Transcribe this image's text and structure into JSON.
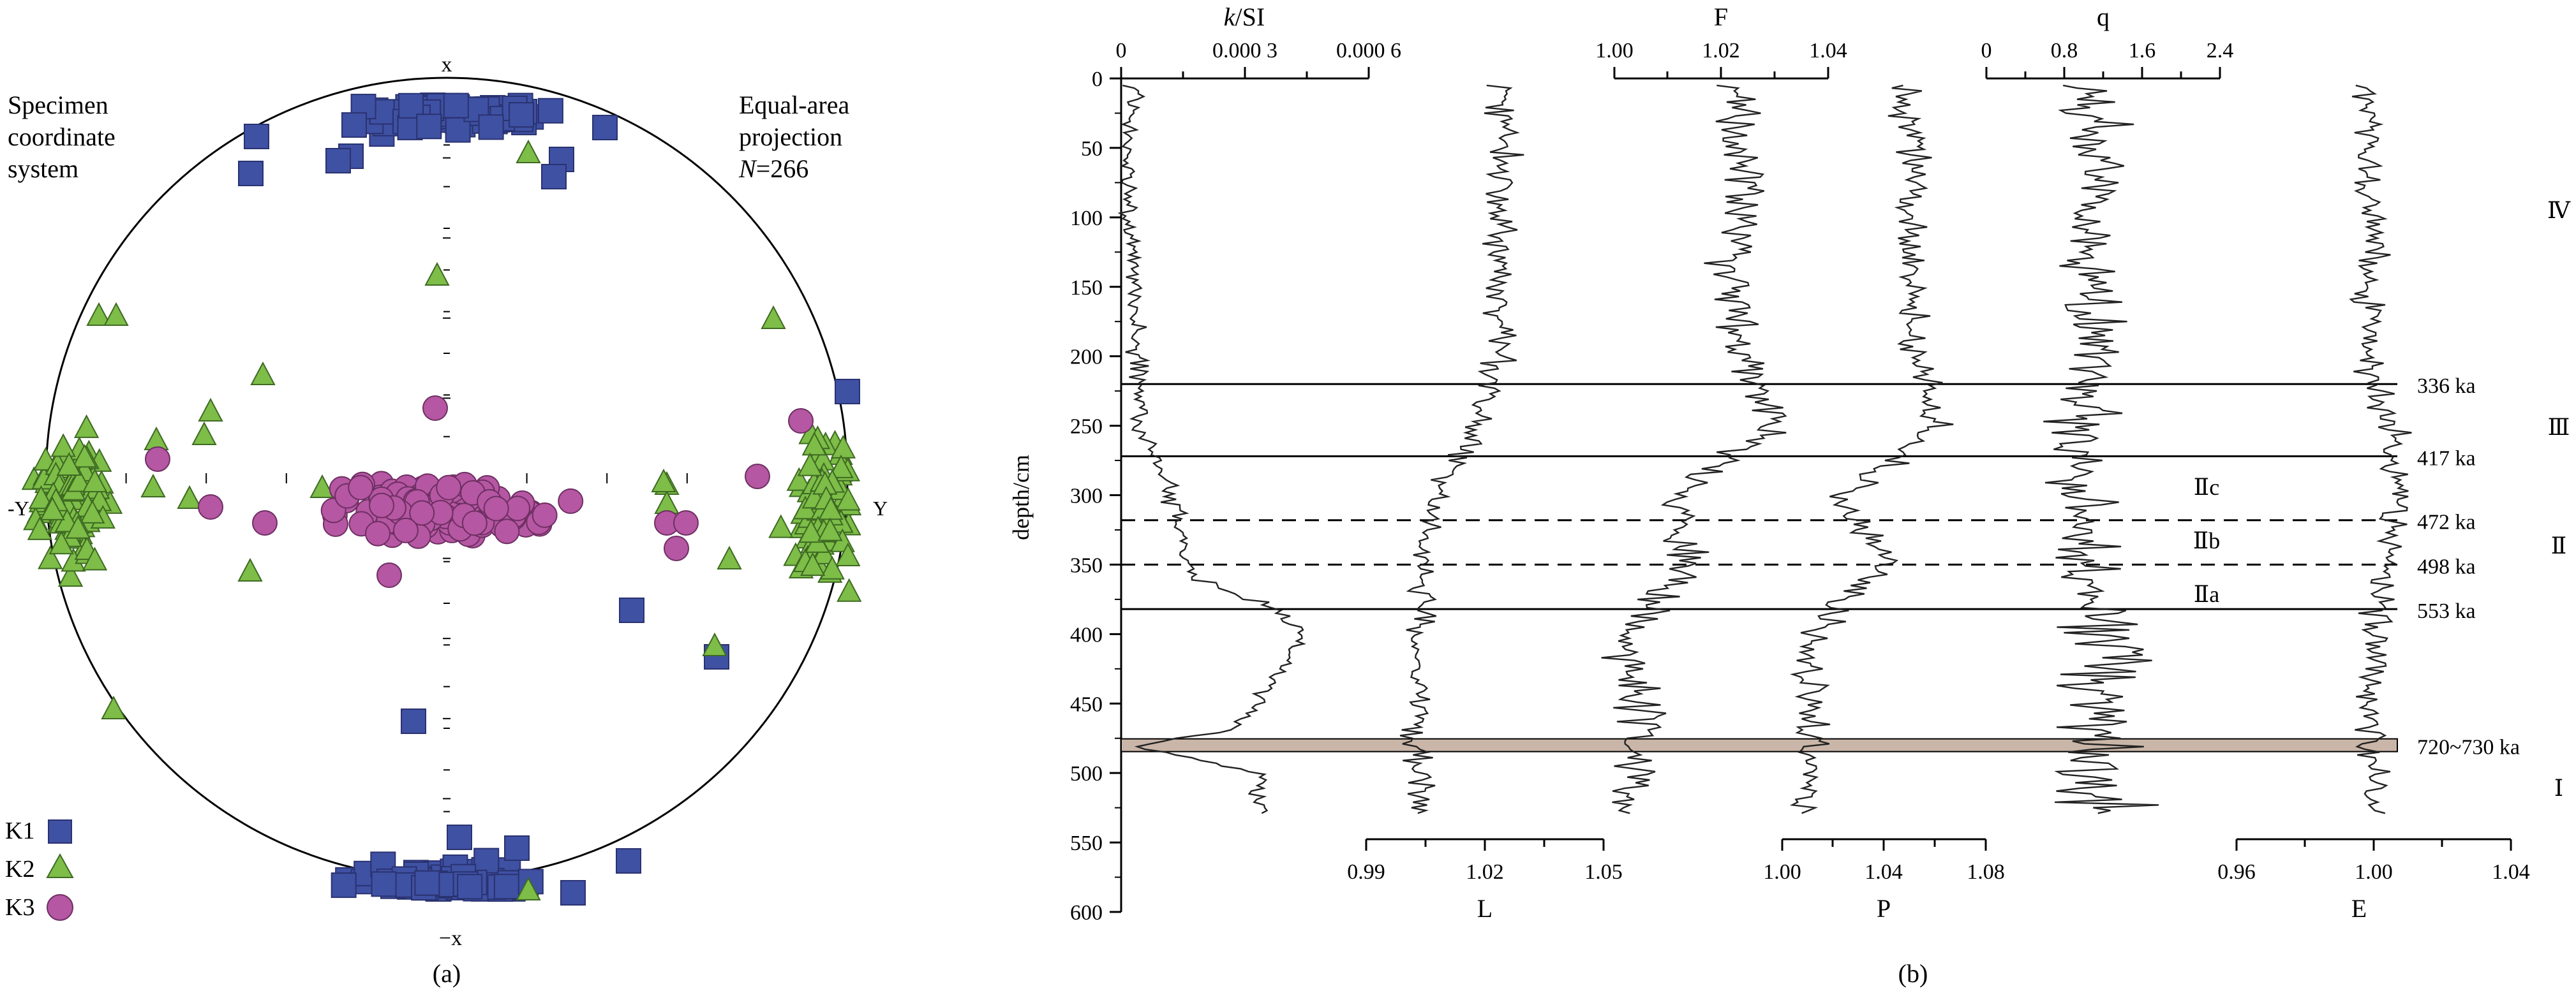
{
  "panel_a": {
    "caption": "(a)",
    "title_left": [
      "Specimen",
      "coordinate",
      "system"
    ],
    "title_right": [
      "Equal-area",
      "projection"
    ],
    "n_prefix": "N",
    "n_value": "=266",
    "axis_top": "x",
    "axis_bottom": "−x",
    "axis_left": "-Y",
    "axis_right": "Y",
    "legend": [
      {
        "label": "K1",
        "marker": "square",
        "color": "#3f51a3"
      },
      {
        "label": "K2",
        "marker": "triangle",
        "color": "#7dbd48"
      },
      {
        "label": "K3",
        "marker": "circle",
        "color": "#b557a3"
      }
    ]
  },
  "panel_b": {
    "caption": "(b)",
    "ylabel": "depth/cm",
    "depth_ticks": [
      0,
      50,
      100,
      150,
      200,
      250,
      300,
      350,
      400,
      450,
      500,
      550,
      600
    ],
    "top_axes": [
      {
        "label_k": "k",
        "label_rest": "/SI",
        "ticks": [
          "0",
          "0.000 3",
          "0.000 6"
        ]
      },
      {
        "label": "F",
        "ticks": [
          "1.00",
          "1.02",
          "1.04"
        ]
      },
      {
        "label": "q",
        "ticks": [
          "0",
          "0.8",
          "1.6",
          "2.4"
        ]
      }
    ],
    "bottom_axes": [
      {
        "label": "L",
        "ticks": [
          "0.99",
          "1.02",
          "1.05"
        ]
      },
      {
        "label": "P",
        "ticks": [
          "1.00",
          "1.04",
          "1.08"
        ]
      },
      {
        "label": "E",
        "ticks": [
          "0.96",
          "1.00",
          "1.04"
        ]
      }
    ],
    "boundaries": [
      {
        "depth": 220,
        "age": "336 ka",
        "style": "solid"
      },
      {
        "depth": 272,
        "age": "417 ka",
        "style": "solid"
      },
      {
        "depth": 318,
        "age": "472 ka",
        "style": "dashed"
      },
      {
        "depth": 350,
        "age": "498 ka",
        "style": "dashed"
      },
      {
        "depth": 382,
        "age": "553 ka",
        "style": "solid"
      },
      {
        "depth": 480,
        "age": "720~730 ka",
        "style": "band"
      }
    ],
    "subunits": [
      {
        "label": "Ⅱc",
        "depth": 298
      },
      {
        "label": "Ⅱb",
        "depth": 332
      },
      {
        "label": "Ⅱa",
        "depth": 366
      }
    ],
    "units": [
      {
        "label": "Ⅳ",
        "depth": 90
      },
      {
        "label": "Ⅲ",
        "depth": 250
      },
      {
        "label": "Ⅱ",
        "depth": 330
      },
      {
        "label": "Ⅰ",
        "depth": 482
      }
    ],
    "colors": {
      "band": "#c9b6a8",
      "curve": "#222222"
    }
  },
  "chart_data": [
    {
      "type": "scatter",
      "projection": "equal-area",
      "n": 266,
      "series": [
        {
          "name": "K1",
          "description_points": "clusters near x and −x poles"
        },
        {
          "name": "K2",
          "description_points": "clusters near −Y and Y"
        },
        {
          "name": "K3",
          "description_points": "cluster near centre"
        }
      ]
    },
    {
      "type": "line",
      "ylabel": "depth/cm",
      "ylim": [
        0,
        600
      ],
      "inverted_y": true,
      "series": [
        {
          "name": "k/SI",
          "xlim": [
            0,
            0.0006
          ],
          "depth": [
            5,
            50,
            100,
            150,
            200,
            250,
            280,
            320,
            360,
            380,
            400,
            440,
            470,
            480,
            500,
            530
          ],
          "values": [
            3e-05,
            2e-05,
            2e-05,
            3e-05,
            4e-05,
            5e-05,
            0.0001,
            0.00014,
            0.00018,
            0.00036,
            0.00044,
            0.00036,
            0.00026,
            2e-05,
            0.00033,
            0.00034
          ]
        },
        {
          "name": "L",
          "xlim": [
            0.99,
            1.05
          ],
          "depth": [
            5,
            50,
            100,
            150,
            200,
            250,
            300,
            350,
            400,
            450,
            500,
            530
          ],
          "values": [
            1.024,
            1.025,
            1.023,
            1.024,
            1.023,
            1.018,
            1.008,
            1.005,
            1.003,
            1.003,
            1.003,
            1.003
          ]
        },
        {
          "name": "F",
          "xlim": [
            1.0,
            1.04
          ],
          "depth": [
            5,
            50,
            100,
            150,
            200,
            250,
            300,
            350,
            400,
            450,
            500,
            530
          ],
          "values": [
            1.022,
            1.024,
            1.024,
            1.022,
            1.024,
            1.03,
            1.012,
            1.014,
            1.003,
            1.004,
            1.004,
            1.003
          ]
        },
        {
          "name": "P",
          "xlim": [
            1.0,
            1.08
          ],
          "depth": [
            5,
            50,
            100,
            150,
            200,
            250,
            300,
            350,
            400,
            450,
            500,
            530
          ],
          "values": [
            1.05,
            1.052,
            1.05,
            1.05,
            1.052,
            1.06,
            1.025,
            1.04,
            1.01,
            1.012,
            1.012,
            1.008
          ]
        },
        {
          "name": "q",
          "xlim": [
            0,
            2.4
          ],
          "depth": [
            5,
            50,
            100,
            150,
            200,
            250,
            300,
            350,
            400,
            450,
            500,
            530
          ],
          "values": [
            1.1,
            1.1,
            1.05,
            1.1,
            1.05,
            0.95,
            1.0,
            1.0,
            1.2,
            1.2,
            1.1,
            1.2
          ]
        },
        {
          "name": "E",
          "xlim": [
            0.96,
            1.04
          ],
          "depth": [
            5,
            50,
            100,
            150,
            200,
            250,
            300,
            350,
            400,
            450,
            500,
            530
          ],
          "values": [
            0.998,
            0.999,
            1.0,
            0.998,
            1.0,
            1.005,
            1.006,
            1.005,
            1.0,
            0.999,
            1.0,
            1.0
          ]
        }
      ]
    }
  ]
}
